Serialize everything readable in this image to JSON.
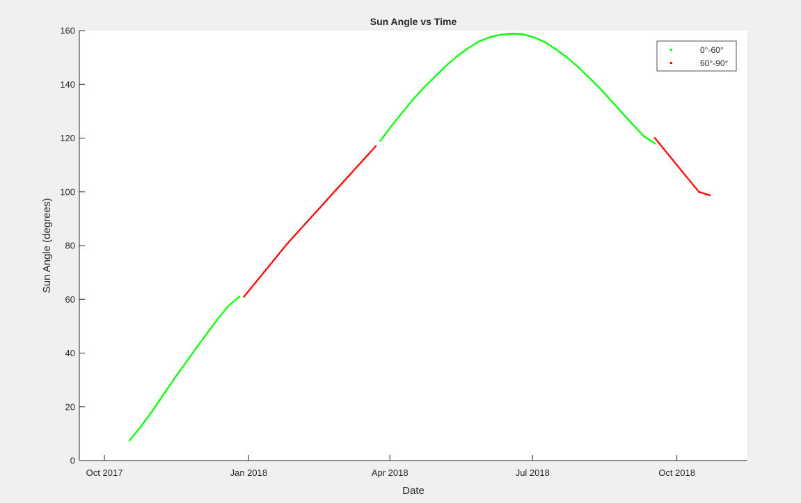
{
  "chart_data": {
    "type": "scatter",
    "title": "Sun Angle vs Time",
    "xlabel": "Date",
    "ylabel": "Sun Angle (degrees)",
    "xlim": [
      "2017-09-15",
      "2018-11-15"
    ],
    "ylim": [
      0,
      160
    ],
    "x_ticks": [
      {
        "date": "2017-10-01",
        "label": "Oct 2017"
      },
      {
        "date": "2018-01-01",
        "label": "Jan 2018"
      },
      {
        "date": "2018-04-01",
        "label": "Apr 2018"
      },
      {
        "date": "2018-07-01",
        "label": "Jul 2018"
      },
      {
        "date": "2018-10-01",
        "label": "Oct 2018"
      }
    ],
    "y_ticks": [
      0,
      20,
      40,
      60,
      80,
      100,
      120,
      140,
      160
    ],
    "grid": false,
    "legend": {
      "position": "top-right"
    },
    "series": [
      {
        "name": "0°-60°",
        "color": "#00ff00",
        "x": [
          "2017-10-17",
          "2017-10-24",
          "2017-10-31",
          "2017-11-07",
          "2017-11-14",
          "2017-11-21",
          "2017-11-28",
          "2017-12-05",
          "2017-12-12",
          "2017-12-19",
          "2017-12-26",
          "2018-03-26",
          "2018-04-02",
          "2018-04-09",
          "2018-04-16",
          "2018-04-23",
          "2018-04-30",
          "2018-05-07",
          "2018-05-14",
          "2018-05-21",
          "2018-05-28",
          "2018-06-04",
          "2018-06-11",
          "2018-06-18",
          "2018-06-21",
          "2018-06-25",
          "2018-07-02",
          "2018-07-09",
          "2018-07-16",
          "2018-07-23",
          "2018-07-30",
          "2018-08-06",
          "2018-08-13",
          "2018-08-20",
          "2018-08-27",
          "2018-09-03",
          "2018-09-10",
          "2018-09-17"
        ],
        "y": [
          7.5,
          12.5,
          18,
          24,
          30,
          35.7,
          41.4,
          47,
          52.5,
          57.5,
          61,
          119,
          124.5,
          129.6,
          134.5,
          139,
          143,
          147,
          150.5,
          153.5,
          156,
          157.6,
          158.5,
          158.8,
          158.8,
          158.6,
          157.5,
          155.7,
          153,
          150,
          146.5,
          142.5,
          138.5,
          134,
          129.5,
          125,
          120.7,
          118
        ]
      },
      {
        "name": "60°-90°",
        "color": "#ff0000",
        "x": [
          "2017-12-29",
          "2018-01-05",
          "2018-01-12",
          "2018-01-19",
          "2018-01-26",
          "2018-02-02",
          "2018-02-09",
          "2018-02-16",
          "2018-02-23",
          "2018-03-02",
          "2018-03-09",
          "2018-03-16",
          "2018-03-23",
          "2018-09-17",
          "2018-09-24",
          "2018-10-01",
          "2018-10-08",
          "2018-10-15",
          "2018-10-22"
        ],
        "y": [
          61,
          66,
          71,
          76,
          81,
          85.5,
          90,
          94.5,
          99,
          103.5,
          108,
          112.5,
          117,
          120,
          115,
          110,
          105,
          100,
          98.7
        ]
      }
    ]
  }
}
